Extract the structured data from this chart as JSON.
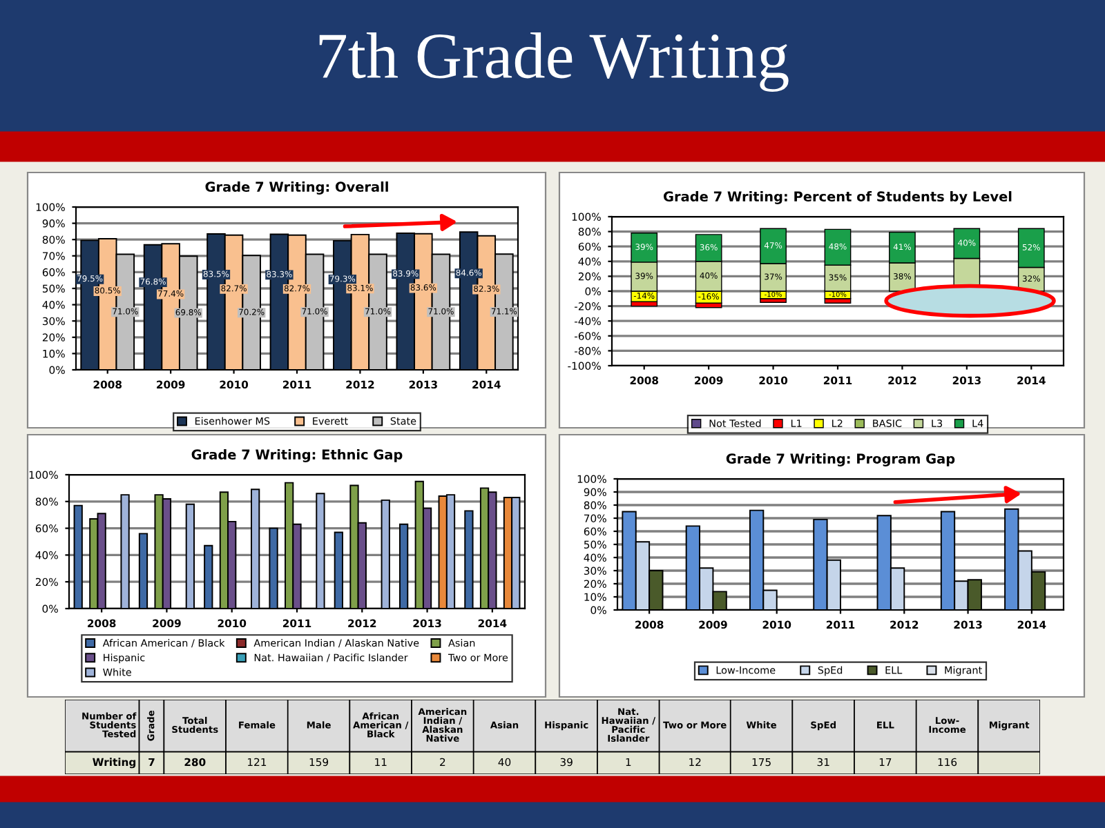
{
  "chart_data": [
    {
      "type": "other",
      "title": "7th Grade Writing"
    },
    {
      "type": "bar",
      "title": "Grade 7 Writing: Overall",
      "categories": [
        "2008",
        "2009",
        "2010",
        "2011",
        "2012",
        "2013",
        "2014"
      ],
      "series": [
        {
          "name": "Eisenhower MS",
          "color": "#1c3557",
          "values": [
            79.5,
            76.8,
            83.5,
            83.3,
            79.3,
            83.9,
            84.6
          ],
          "value_labels": [
            "79.5%",
            "76.8%",
            "83.5%",
            "83.3%",
            "79.3%",
            "83.9%",
            "84.6%"
          ]
        },
        {
          "name": "Everett",
          "color": "#f9c08f",
          "values": [
            80.5,
            77.4,
            82.7,
            82.7,
            83.1,
            83.6,
            82.3
          ],
          "value_labels": [
            "80.5%",
            "77.4%",
            "82.7%",
            "82.7%",
            "83.1%",
            "83.6%",
            "82.3%"
          ]
        },
        {
          "name": "State",
          "color": "#bfbfbf",
          "values": [
            71.0,
            69.8,
            70.2,
            71.0,
            71.0,
            71.0,
            71.1
          ],
          "value_labels": [
            "71.0%",
            "69.8%",
            "70.2%",
            "71.0%",
            "71.0%",
            "71.0%",
            "71.1%"
          ]
        }
      ],
      "ylim": [
        0,
        100
      ],
      "yticks": [
        {
          "value": 0,
          "label": "0%"
        },
        {
          "value": 10,
          "label": "10%"
        },
        {
          "value": 20,
          "label": "20%"
        },
        {
          "value": 30,
          "label": "30%"
        },
        {
          "value": 40,
          "label": "40%"
        },
        {
          "value": 50,
          "label": "50%"
        },
        {
          "value": 60,
          "label": "60%"
        },
        {
          "value": 70,
          "label": "70%"
        },
        {
          "value": 80,
          "label": "80%"
        },
        {
          "value": 90,
          "label": "90%"
        },
        {
          "value": 100,
          "label": "100%"
        }
      ],
      "grid": "y",
      "legend": "bottom"
    },
    {
      "type": "bar",
      "title": "Grade 7 Writing: Percent of Students by Level",
      "categories": [
        "2008",
        "2009",
        "2010",
        "2011",
        "2012",
        "2013",
        "2014"
      ],
      "stacked": true,
      "series": [
        {
          "name": "Not Tested",
          "color": "#5f4a8b",
          "values": [
            null,
            null,
            null,
            null,
            null,
            null,
            null
          ]
        },
        {
          "name": "L1",
          "color": "#ff0000",
          "values": [
            -6,
            -6,
            -5,
            -6,
            null,
            null,
            null
          ]
        },
        {
          "name": "L2",
          "color": "#ffff00",
          "values": [
            -14,
            -16,
            -10,
            -10,
            null,
            null,
            null
          ],
          "value_labels": [
            "-14%",
            "-16%",
            "-10%",
            "-10%",
            null,
            null,
            null
          ]
        },
        {
          "name": "BASIC",
          "color": "#9bbb59",
          "values": [
            null,
            null,
            null,
            null,
            null,
            null,
            null
          ]
        },
        {
          "name": "L3",
          "color": "#c4d79b",
          "values": [
            39,
            40,
            37,
            35,
            38,
            44,
            32
          ],
          "value_labels": [
            "39%",
            "40%",
            "37%",
            "35%",
            "38%",
            null,
            "32%"
          ]
        },
        {
          "name": "L4",
          "color": "#1a9f4a",
          "values": [
            39,
            36,
            47,
            48,
            41,
            40,
            52
          ],
          "value_labels": [
            "39%",
            "36%",
            "47%",
            "48%",
            "41%",
            "40%",
            "52%"
          ]
        }
      ],
      "ylim": [
        -100,
        100
      ],
      "yticks": [
        {
          "value": -100,
          "label": "-100%"
        },
        {
          "value": -80,
          "label": "-80%"
        },
        {
          "value": -60,
          "label": "-60%"
        },
        {
          "value": -40,
          "label": "-40%"
        },
        {
          "value": -20,
          "label": "-20%"
        },
        {
          "value": 0,
          "label": "0%"
        },
        {
          "value": 20,
          "label": "20%"
        },
        {
          "value": 40,
          "label": "40%"
        },
        {
          "value": 60,
          "label": "60%"
        },
        {
          "value": 80,
          "label": "80%"
        },
        {
          "value": 100,
          "label": "100%"
        }
      ],
      "grid": "y",
      "legend": "bottom"
    },
    {
      "type": "bar",
      "title": "Grade 7 Writing: Ethnic Gap",
      "categories": [
        "2008",
        "2009",
        "2010",
        "2011",
        "2012",
        "2013",
        "2014"
      ],
      "series": [
        {
          "name": "African American / Black",
          "color": "#3f6aa5",
          "values": [
            77,
            56,
            47,
            60,
            57,
            63,
            73
          ]
        },
        {
          "name": "American Indian / Alaskan Native",
          "color": "#8b2a2a",
          "values": [
            null,
            null,
            null,
            null,
            null,
            null,
            null
          ]
        },
        {
          "name": "Asian",
          "color": "#7fa04a",
          "values": [
            67,
            85,
            87,
            94,
            92,
            95,
            90
          ]
        },
        {
          "name": "Hispanic",
          "color": "#6a4f8a",
          "values": [
            71,
            82,
            65,
            63,
            64,
            75,
            87
          ]
        },
        {
          "name": "Nat. Hawaiian / Pacific Islander",
          "color": "#3aa0b8",
          "values": [
            null,
            null,
            null,
            null,
            null,
            null,
            null
          ]
        },
        {
          "name": "Two or More",
          "color": "#e8883a",
          "values": [
            null,
            null,
            null,
            null,
            null,
            84,
            83
          ]
        },
        {
          "name": "White",
          "color": "#9fb3d9",
          "values": [
            85,
            78,
            89,
            86,
            81,
            85,
            83
          ]
        }
      ],
      "ylim": [
        0,
        100
      ],
      "yticks": [
        {
          "value": 0,
          "label": "0%"
        },
        {
          "value": 20,
          "label": "20%"
        },
        {
          "value": 40,
          "label": "40%"
        },
        {
          "value": 60,
          "label": "60%"
        },
        {
          "value": 80,
          "label": "80%"
        },
        {
          "value": 100,
          "label": "100%"
        }
      ],
      "grid": "y",
      "legend": "bottom"
    },
    {
      "type": "bar",
      "title": "Grade 7 Writing: Program Gap",
      "categories": [
        "2008",
        "2009",
        "2010",
        "2011",
        "2012",
        "2013",
        "2014"
      ],
      "series": [
        {
          "name": "Low-Income",
          "color": "#5b8ed6",
          "values": [
            75,
            64,
            76,
            69,
            72,
            75,
            77
          ]
        },
        {
          "name": "SpEd",
          "color": "#c5d5ea",
          "values": [
            52,
            32,
            15,
            38,
            32,
            22,
            45
          ]
        },
        {
          "name": "ELL",
          "color": "#4a5a2a",
          "values": [
            30,
            14,
            null,
            null,
            null,
            23,
            29
          ]
        },
        {
          "name": "Migrant",
          "color": "#d9e0ea",
          "values": [
            null,
            null,
            null,
            null,
            null,
            null,
            null
          ]
        }
      ],
      "ylim": [
        0,
        100
      ],
      "yticks": [
        {
          "value": 0,
          "label": "0%"
        },
        {
          "value": 10,
          "label": "10%"
        },
        {
          "value": 20,
          "label": "20%"
        },
        {
          "value": 30,
          "label": "30%"
        },
        {
          "value": 40,
          "label": "40%"
        },
        {
          "value": 50,
          "label": "50%"
        },
        {
          "value": 60,
          "label": "60%"
        },
        {
          "value": 70,
          "label": "70%"
        },
        {
          "value": 80,
          "label": "80%"
        },
        {
          "value": 90,
          "label": "90%"
        },
        {
          "value": 100,
          "label": "100%"
        }
      ],
      "grid": "y",
      "legend": "bottom"
    },
    {
      "type": "other",
      "categories": [
        "Number of\nStudents\nTested",
        "Grade",
        "Total\nStudents",
        "Female",
        "Male",
        "African\nAmerican /\nBlack",
        "American\nIndian /\nAlaskan\nNative",
        "Asian",
        "Hispanic",
        "Nat.\nHawaiian /\nPacific\nIslander",
        "Two or More",
        "White",
        "SpEd",
        "ELL",
        "Low-\nIncome",
        "Migrant"
      ],
      "annotations": [
        "Writing",
        "7",
        "280",
        "121",
        "159",
        "11",
        "2",
        "40",
        "39",
        "1",
        "12",
        "175",
        "31",
        "17",
        "116"
      ]
    }
  ]
}
